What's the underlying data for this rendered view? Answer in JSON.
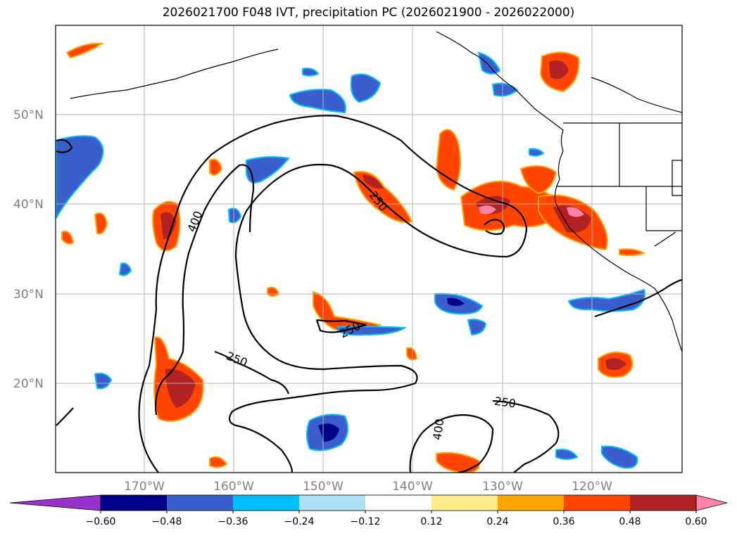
{
  "title": "2026021700 F048 IVT, precipitation PC (2026021900 - 2026022000)",
  "map": {
    "lat_labels": [
      "50°N",
      "40°N",
      "30°N",
      "20°N"
    ],
    "lon_labels": [
      "170°W",
      "160°W",
      "150°W",
      "140°W",
      "130°W",
      "120°W"
    ],
    "contour_labels": [
      "400",
      "250",
      "250",
      "250",
      "250",
      "400"
    ],
    "contour_levels": [
      250,
      400
    ]
  },
  "colorbar": {
    "ticks": [
      "−0.60",
      "−0.48",
      "−0.36",
      "−0.24",
      "−0.12",
      "0.12",
      "0.24",
      "0.36",
      "0.48",
      "0.60"
    ],
    "colors": [
      "#9932CC",
      "#00008B",
      "#3A5FCD",
      "#00BFFF",
      "#ADDFF7",
      "#FFFFFF",
      "#FFEC8B",
      "#FFA500",
      "#FF4500",
      "#B22222",
      "#FF82AB"
    ]
  },
  "colors": {
    "land_border": "#000000",
    "grid": "#b0b0b0"
  }
}
